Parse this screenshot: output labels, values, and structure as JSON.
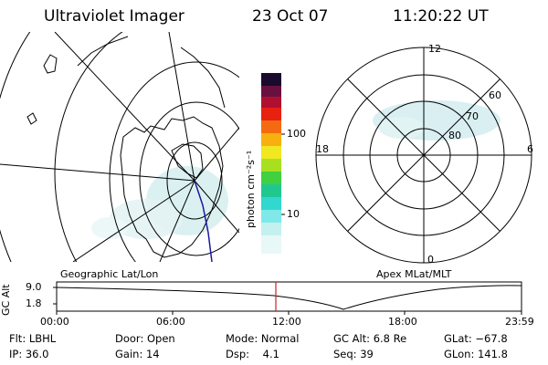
{
  "header": {
    "instrument": "Ultraviolet Imager",
    "date": "23 Oct 07",
    "time": "11:20:22 UT"
  },
  "colorbar": {
    "unit_label": "photon cm⁻²s⁻¹",
    "ticks": [
      "100",
      "10"
    ]
  },
  "panels": {
    "left_caption": "Geographic Lat/Lon",
    "right_caption": "Apex MLat/MLT"
  },
  "polar": {
    "mlt": [
      "12",
      "18",
      "6",
      "0"
    ],
    "mlat": [
      "60",
      "70",
      "80"
    ]
  },
  "altitude_plot": {
    "ylabel": "GC Alt",
    "y_ticks": [
      "9.0",
      "1.8"
    ],
    "x_ticks": [
      "00:00",
      "06:00",
      "12:00",
      "18:00",
      "23:59"
    ],
    "marker_time_hours": 11.34
  },
  "footer": {
    "row1": {
      "filter": "Flt: LBHL",
      "door": "Door: Open",
      "mode": "Mode: Normal",
      "gc_alt": "GC Alt: 6.8 Re",
      "glat": "GLat: −67.8"
    },
    "row2": {
      "ip": "IP: 36.0",
      "gain": "Gain: 14",
      "dsp": "Dsp:    4.1",
      "seq": "Seq: 39",
      "glon": "GLon: 141.8"
    }
  },
  "colors": {
    "glow": "#cfe9ea",
    "marker": "#cc2222",
    "track": "#1a1aa0"
  }
}
